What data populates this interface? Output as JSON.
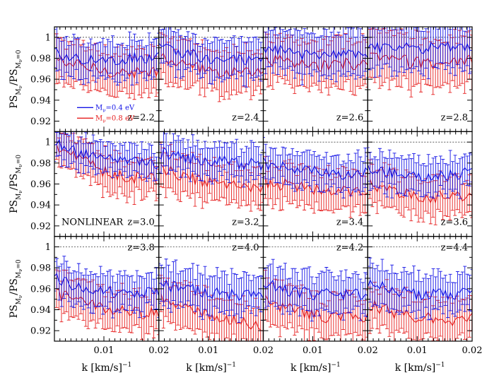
{
  "chart_data": {
    "type": "line",
    "layout": {
      "rows": 3,
      "cols": 4
    },
    "ylabel_main": "PS",
    "ylabel_sub": "M",
    "ylabel_subsub_1": "ν",
    "ylabel_den_sub_tail": "=0",
    "xlabel": "k [km/s]",
    "xlabel_exp": "−1",
    "xlim": [
      0.001,
      0.02
    ],
    "ylim": [
      0.91,
      1.01
    ],
    "yticks": [
      0.92,
      0.94,
      0.96,
      0.98,
      1.0
    ],
    "ytick_labels": [
      "0.92",
      "0.94",
      "0.96",
      "0.98",
      "1"
    ],
    "xtick_labels": [
      "0.01",
      "0.02"
    ],
    "reference_line": 1.0,
    "panel_text": "NONLINEAR",
    "legend": {
      "position": "bottom-left of first panel",
      "entries": [
        {
          "label": "M",
          "sub": "ν",
          "tail": "=0.4 eV",
          "color": "#1414e6"
        },
        {
          "label": "M",
          "sub": "ν",
          "tail": "=0.8 eV",
          "color": "#e61e1e"
        }
      ]
    },
    "panels": [
      {
        "label": "z=2.2",
        "blue_mean": [
          0.985,
          0.98,
          0.978,
          0.98,
          0.982
        ],
        "red_mean": [
          0.978,
          0.972,
          0.968,
          0.966,
          0.966
        ],
        "blue_err": 0.018,
        "red_err": 0.02
      },
      {
        "label": "z=2.4",
        "blue_mean": [
          0.992,
          0.985,
          0.98,
          0.978,
          0.976
        ],
        "red_mean": [
          0.98,
          0.972,
          0.968,
          0.966,
          0.966
        ],
        "blue_err": 0.018,
        "red_err": 0.02
      },
      {
        "label": "z=2.6",
        "blue_mean": [
          0.99,
          0.985,
          0.982,
          0.982,
          0.985
        ],
        "red_mean": [
          0.98,
          0.975,
          0.972,
          0.975,
          0.975
        ],
        "blue_err": 0.02,
        "red_err": 0.022
      },
      {
        "label": "z=2.8",
        "blue_mean": [
          0.99,
          0.99,
          0.99,
          0.99,
          0.99
        ],
        "red_mean": [
          0.982,
          0.978,
          0.976,
          0.975,
          0.98
        ],
        "blue_err": 0.022,
        "red_err": 0.024
      },
      {
        "label": "z=3.0",
        "blue_mean": [
          1.0,
          0.99,
          0.985,
          0.98,
          0.978
        ],
        "red_mean": [
          0.995,
          0.982,
          0.97,
          0.966,
          0.966
        ],
        "blue_err": 0.014,
        "red_err": 0.017
      },
      {
        "label": "z=3.2",
        "blue_mean": [
          0.99,
          0.985,
          0.982,
          0.98,
          0.978
        ],
        "red_mean": [
          0.975,
          0.966,
          0.96,
          0.957,
          0.955
        ],
        "blue_err": 0.015,
        "red_err": 0.018
      },
      {
        "label": "z=3.4",
        "blue_mean": [
          0.98,
          0.974,
          0.972,
          0.97,
          0.97
        ],
        "red_mean": [
          0.962,
          0.958,
          0.955,
          0.952,
          0.95
        ],
        "blue_err": 0.016,
        "red_err": 0.018
      },
      {
        "label": "z=3.6",
        "blue_mean": [
          0.975,
          0.97,
          0.968,
          0.968,
          0.97
        ],
        "red_mean": [
          0.96,
          0.952,
          0.948,
          0.947,
          0.95
        ],
        "blue_err": 0.016,
        "red_err": 0.018
      },
      {
        "label": "z=3.8",
        "blue_mean": [
          0.97,
          0.962,
          0.958,
          0.957,
          0.958
        ],
        "red_mean": [
          0.955,
          0.947,
          0.94,
          0.937,
          0.936
        ],
        "blue_err": 0.017,
        "red_err": 0.019
      },
      {
        "label": "z=4.0",
        "blue_mean": [
          0.965,
          0.96,
          0.956,
          0.954,
          0.954
        ],
        "red_mean": [
          0.95,
          0.94,
          0.933,
          0.928,
          0.925
        ],
        "blue_err": 0.018,
        "red_err": 0.02
      },
      {
        "label": "z=4.2",
        "blue_mean": [
          0.965,
          0.958,
          0.955,
          0.954,
          0.955
        ],
        "red_mean": [
          0.948,
          0.94,
          0.934,
          0.932,
          0.932
        ],
        "blue_err": 0.018,
        "red_err": 0.02
      },
      {
        "label": "z=4.4",
        "blue_mean": [
          0.965,
          0.958,
          0.955,
          0.954,
          0.958
        ],
        "red_mean": [
          0.945,
          0.937,
          0.932,
          0.93,
          0.935
        ],
        "blue_err": 0.018,
        "red_err": 0.02
      }
    ]
  }
}
